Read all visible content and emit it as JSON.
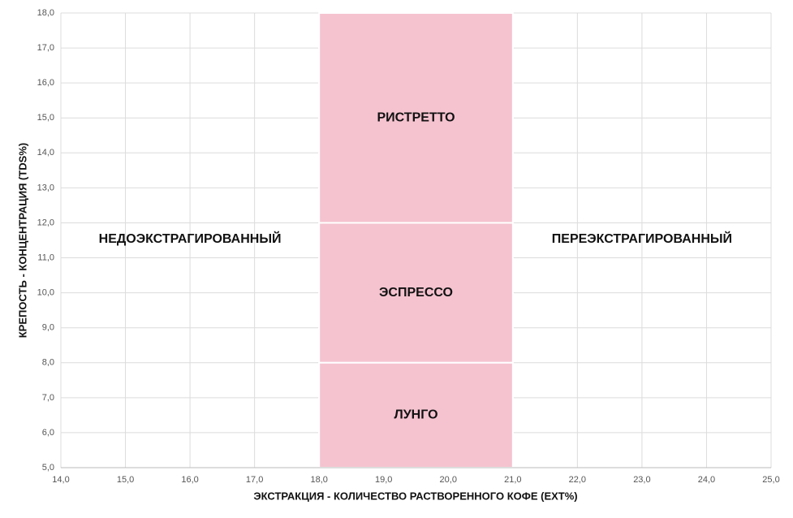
{
  "chart_data": {
    "type": "zones",
    "x_label": "ЭКСТРАКЦИЯ - КОЛИЧЕСТВО РАСТВОРЕННОГО КОФЕ (EXT%)",
    "y_label": "КРЕПОСТЬ - КОНЦЕНТРАЦИЯ (TDS%)",
    "xlim": [
      14,
      25
    ],
    "ylim": [
      5,
      18
    ],
    "xticks": [
      {
        "value": 14,
        "label": "14,0"
      },
      {
        "value": 15,
        "label": "15,0"
      },
      {
        "value": 16,
        "label": "16,0"
      },
      {
        "value": 17,
        "label": "17,0"
      },
      {
        "value": 18,
        "label": "18,0"
      },
      {
        "value": 19,
        "label": "19,0"
      },
      {
        "value": 20,
        "label": "20,0"
      },
      {
        "value": 21,
        "label": "21,0"
      },
      {
        "value": 22,
        "label": "22,0"
      },
      {
        "value": 23,
        "label": "23,0"
      },
      {
        "value": 24,
        "label": "24,0"
      },
      {
        "value": 25,
        "label": "25,0"
      }
    ],
    "yticks": [
      {
        "value": 5,
        "label": "5,0"
      },
      {
        "value": 6,
        "label": "6,0"
      },
      {
        "value": 7,
        "label": "7,0"
      },
      {
        "value": 8,
        "label": "8,0"
      },
      {
        "value": 9,
        "label": "9,0"
      },
      {
        "value": 10,
        "label": "10,0"
      },
      {
        "value": 11,
        "label": "11,0"
      },
      {
        "value": 12,
        "label": "12,0"
      },
      {
        "value": 13,
        "label": "13,0"
      },
      {
        "value": 14,
        "label": "14,0"
      },
      {
        "value": 15,
        "label": "15,0"
      },
      {
        "value": 16,
        "label": "16,0"
      },
      {
        "value": 17,
        "label": "17,0"
      },
      {
        "value": 18,
        "label": "18,0"
      }
    ],
    "grid": true,
    "color": "#f5c3d0",
    "zones": [
      {
        "name": "РИСТРЕТТО",
        "x": [
          18,
          21
        ],
        "y": [
          12,
          18
        ]
      },
      {
        "name": "ЭСПРЕССО",
        "x": [
          18,
          21
        ],
        "y": [
          8,
          12
        ]
      },
      {
        "name": "ЛУНГО",
        "x": [
          18,
          21
        ],
        "y": [
          5,
          8
        ]
      }
    ],
    "annotations": [
      "НЕДОЭКСТРАГИРОВАННЫЙ",
      "ПЕРЕЭКСТРАГИРОВАННЫЙ"
    ]
  }
}
